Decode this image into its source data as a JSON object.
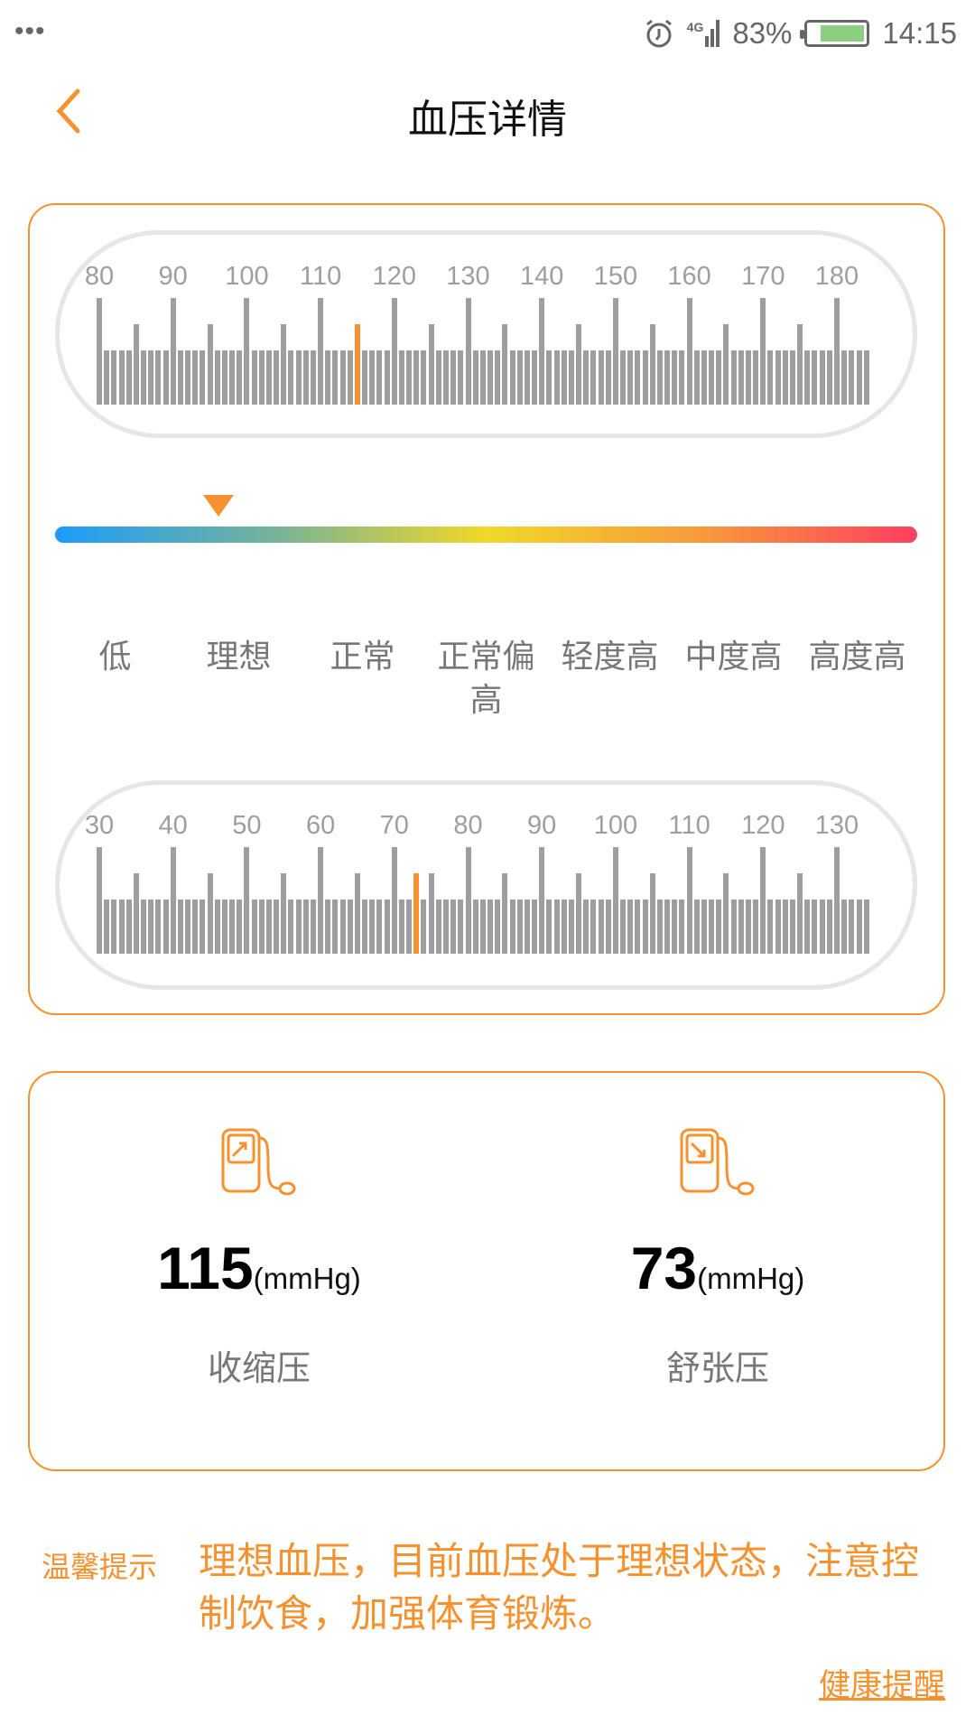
{
  "status_bar": {
    "dots": "•••",
    "signal": "4G",
    "battery": "83%",
    "battery_level": 0.83,
    "time": "14:15",
    "icons": [
      "alarm-icon",
      "signal-icon",
      "battery-icon"
    ]
  },
  "header": {
    "title": "血压详情",
    "back_icon": "chevron-left-icon"
  },
  "colors": {
    "accent": "#f5922f",
    "tick": "#9e9e9e",
    "text_gray": "#777777"
  },
  "systolic_ruler": {
    "min": 80,
    "max": 180,
    "step_label": 10,
    "value": 115,
    "labels": [
      "80",
      "90",
      "100",
      "110",
      "120",
      "130",
      "140",
      "150",
      "160",
      "170",
      "180"
    ]
  },
  "level_scale": {
    "pointer_value_fraction": 0.19,
    "levels": [
      "低",
      "理想",
      "正常",
      "正常偏高",
      "轻度高",
      "中度高",
      "高度高"
    ]
  },
  "diastolic_ruler": {
    "min": 30,
    "max": 130,
    "step_label": 10,
    "value": 73,
    "labels": [
      "30",
      "40",
      "50",
      "60",
      "70",
      "80",
      "90",
      "100",
      "110",
      "120",
      "130"
    ]
  },
  "readings": [
    {
      "value": "115",
      "unit": "(mmHg)",
      "label": "收缩压",
      "icon": "bp-monitor-up-icon"
    },
    {
      "value": "73",
      "unit": "(mmHg)",
      "label": "舒张压",
      "icon": "bp-monitor-down-icon"
    }
  ],
  "tip": {
    "label": "温馨提示",
    "message": "理想血压，目前血压处于理想状态，注意控制饮食，加强体育锻炼。"
  },
  "health_link": "健康提醒"
}
